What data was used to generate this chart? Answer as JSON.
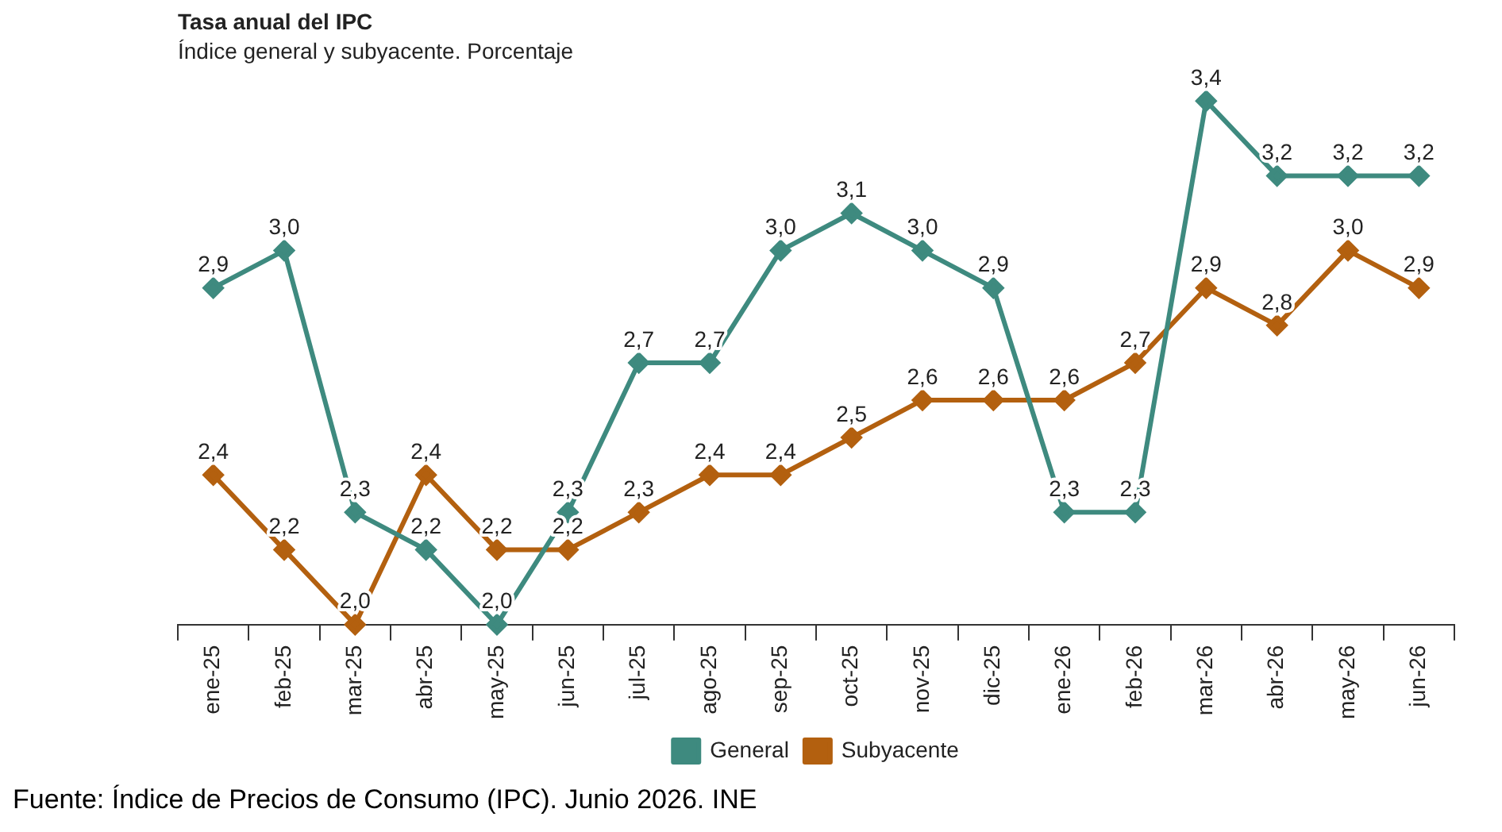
{
  "chart_data": {
    "type": "line",
    "title": "Tasa anual del IPC",
    "subtitle": "Índice general y subyacente. Porcentaje",
    "categories": [
      "ene-25",
      "feb-25",
      "mar-25",
      "abr-25",
      "may-25",
      "jun-25",
      "jul-25",
      "ago-25",
      "sep-25",
      "oct-25",
      "nov-25",
      "dic-25",
      "ene-26",
      "feb-26",
      "mar-26",
      "abr-26",
      "may-26",
      "jun-26"
    ],
    "series": [
      {
        "name": "General",
        "color": "#3e8a7f",
        "values": [
          2.9,
          3.0,
          2.3,
          2.2,
          2.0,
          2.3,
          2.7,
          2.7,
          3.0,
          3.1,
          3.0,
          2.9,
          2.3,
          2.3,
          3.4,
          3.2,
          3.2,
          3.2
        ],
        "value_labels": [
          "2,9",
          "3,0",
          "2,3",
          "2,2",
          "2,0",
          "2,3",
          "2,7",
          "2,7",
          "3,0",
          "3,1",
          "3,0",
          "2,9",
          "2,3",
          "2,3",
          "3,4",
          "3,2",
          "3,2",
          "3,2"
        ]
      },
      {
        "name": "Subyacente",
        "color": "#b3600f",
        "values": [
          2.4,
          2.2,
          2.0,
          2.4,
          2.2,
          2.2,
          2.3,
          2.4,
          2.4,
          2.5,
          2.6,
          2.6,
          2.6,
          2.7,
          2.9,
          2.8,
          3.0,
          2.9
        ],
        "value_labels": [
          "2,4",
          "2,2",
          "2,0",
          "2,4",
          "2,2",
          "2,2",
          "2,3",
          "2,4",
          "2,4",
          "2,5",
          "2,6",
          "2,6",
          "2,6",
          "2,7",
          "2,9",
          "2,8",
          "3,0",
          "2,9"
        ]
      }
    ],
    "tick_labels": "x",
    "grid": false,
    "legend": "bottom",
    "marker": "diamond",
    "line_style": "solid",
    "annotations": [
      "Fuente: Índice de Precios de Consumo (IPC). Junio 2026. INE"
    ]
  }
}
